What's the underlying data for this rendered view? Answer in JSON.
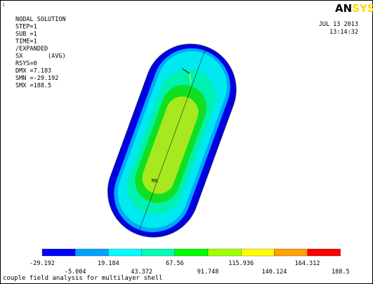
{
  "header": {
    "index": "1",
    "logo_left": "AN",
    "logo_right": "SYS",
    "date": "JUL 13 2013",
    "time": "13:14:32"
  },
  "info": [
    "NODAL SOLUTION",
    "STEP=1",
    "SUB =1",
    "TIME=1",
    "/EXPANDED",
    "SX       (AVG)",
    "RSYS=0",
    "DMX =7.183",
    "SMN =-29.192",
    "SMX =188.5"
  ],
  "markers": {
    "max": "MX"
  },
  "legend": {
    "colors": [
      "#0000ff",
      "#00a0ff",
      "#00ffff",
      "#00ffb0",
      "#00ff00",
      "#a0ff00",
      "#ffff00",
      "#ffa000",
      "#ff0000"
    ],
    "labels": [
      "-29.192",
      "-5.004",
      "19.184",
      "43.372",
      "67.56",
      "91.748",
      "115.936",
      "140.124",
      "164.312",
      "188.5"
    ]
  },
  "caption": "couple field analysis for multilayer shell"
}
